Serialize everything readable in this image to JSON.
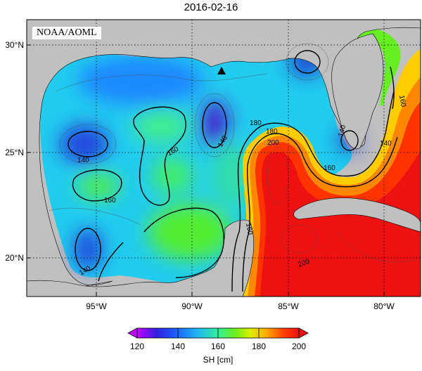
{
  "title": "2016-02-16",
  "source_badge": "NOAA/AOML",
  "map": {
    "lat_labels": [
      "30°N",
      "25°N",
      "20°N"
    ],
    "lon_labels": [
      "95°W",
      "90°W",
      "85°W",
      "80°W"
    ],
    "contour_labels": [
      "140",
      "140",
      "140",
      "140",
      "140",
      "160",
      "160",
      "160",
      "160",
      "160",
      "180",
      "180",
      "200",
      "200"
    ],
    "marker": "triangle"
  },
  "colorbar": {
    "ticks": [
      "120",
      "140",
      "160",
      "180",
      "200"
    ],
    "label": "SH [cm]",
    "colors": [
      "#c000ff",
      "#2233dd",
      "#1a7fff",
      "#22ccee",
      "#33ee99",
      "#55ee22",
      "#ccee00",
      "#ffcc00",
      "#ff8800",
      "#ff3300",
      "#ee1111"
    ]
  }
}
